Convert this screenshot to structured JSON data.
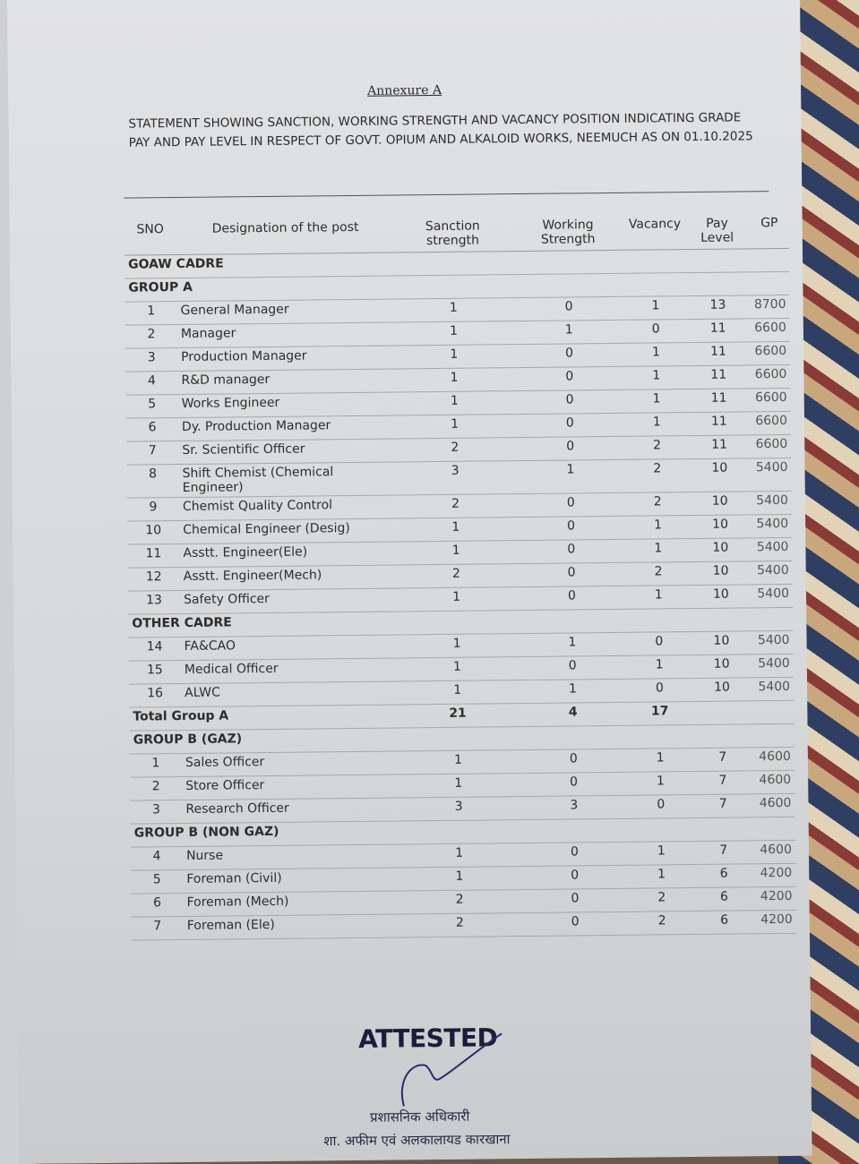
{
  "document": {
    "title": "Annexure A",
    "statement": "STATEMENT SHOWING SANCTION, WORKING STRENGTH AND VACANCY POSITION INDICATING GRADE PAY AND PAY LEVEL IN RESPECT OF GOVT. OPIUM AND ALKALOID WORKS, NEEMUCH AS ON 01.10.2025",
    "headers": [
      "SNO",
      "Designation of the post",
      "Sanction strength",
      "Working Strength",
      "Vacancy",
      "Pay Level",
      "GP"
    ],
    "sections": [
      {
        "label": "GOAW CADRE",
        "rows": []
      },
      {
        "label": "GROUP A",
        "rows": [
          [
            "1",
            "General Manager",
            "1",
            "0",
            "1",
            "13",
            "8700"
          ],
          [
            "2",
            "Manager",
            "1",
            "1",
            "0",
            "11",
            "6600"
          ],
          [
            "3",
            "Production Manager",
            "1",
            "0",
            "1",
            "11",
            "6600"
          ],
          [
            "4",
            "R&D manager",
            "1",
            "0",
            "1",
            "11",
            "6600"
          ],
          [
            "5",
            "Works Engineer",
            "1",
            "0",
            "1",
            "11",
            "6600"
          ],
          [
            "6",
            "Dy. Production Manager",
            "1",
            "0",
            "1",
            "11",
            "6600"
          ],
          [
            "7",
            "Sr. Scientific Officer",
            "2",
            "0",
            "2",
            "11",
            "6600"
          ],
          [
            "8",
            "Shift Chemist (Chemical Engineer)",
            "3",
            "1",
            "2",
            "10",
            "5400"
          ],
          [
            "9",
            "Chemist Quality Control",
            "2",
            "0",
            "2",
            "10",
            "5400"
          ],
          [
            "10",
            "Chemical Engineer (Desig)",
            "1",
            "0",
            "1",
            "10",
            "5400"
          ],
          [
            "11",
            "Asstt. Engineer(Ele)",
            "1",
            "0",
            "1",
            "10",
            "5400"
          ],
          [
            "12",
            "Asstt. Engineer(Mech)",
            "2",
            "0",
            "2",
            "10",
            "5400"
          ],
          [
            "13",
            "Safety Officer",
            "1",
            "0",
            "1",
            "10",
            "5400"
          ]
        ]
      },
      {
        "label": "OTHER CADRE",
        "rows": [
          [
            "14",
            "FA&CAO",
            "1",
            "1",
            "0",
            "10",
            "5400"
          ],
          [
            "15",
            "Medical Officer",
            "1",
            "0",
            "1",
            "10",
            "5400"
          ],
          [
            "16",
            "ALWC",
            "1",
            "1",
            "0",
            "10",
            "5400"
          ]
        ]
      },
      {
        "label": "Total Group A",
        "total": [
          "21",
          "4",
          "17"
        ],
        "rows": []
      },
      {
        "label": "GROUP B (GAZ)",
        "rows": [
          [
            "1",
            "Sales Officer",
            "1",
            "0",
            "1",
            "7",
            "4600"
          ],
          [
            "2",
            "Store Officer",
            "1",
            "0",
            "1",
            "7",
            "4600"
          ],
          [
            "3",
            "Research Officer",
            "3",
            "3",
            "0",
            "7",
            "4600"
          ]
        ]
      },
      {
        "label": "GROUP B (NON GAZ)",
        "rows": [
          [
            "4",
            "Nurse",
            "1",
            "0",
            "1",
            "7",
            "4600"
          ],
          [
            "5",
            "Foreman (Civil)",
            "1",
            "0",
            "1",
            "6",
            "4200"
          ],
          [
            "6",
            "Foreman (Mech)",
            "2",
            "0",
            "2",
            "6",
            "4200"
          ],
          [
            "7",
            "Foreman (Ele)",
            "2",
            "0",
            "2",
            "6",
            "4200"
          ]
        ]
      }
    ],
    "stamp": "ATTESTED",
    "seal_line1": "प्रशासनिक अधिकारी",
    "seal_line2": "शा. अफीम एवं अलकालायड कारखाना"
  }
}
